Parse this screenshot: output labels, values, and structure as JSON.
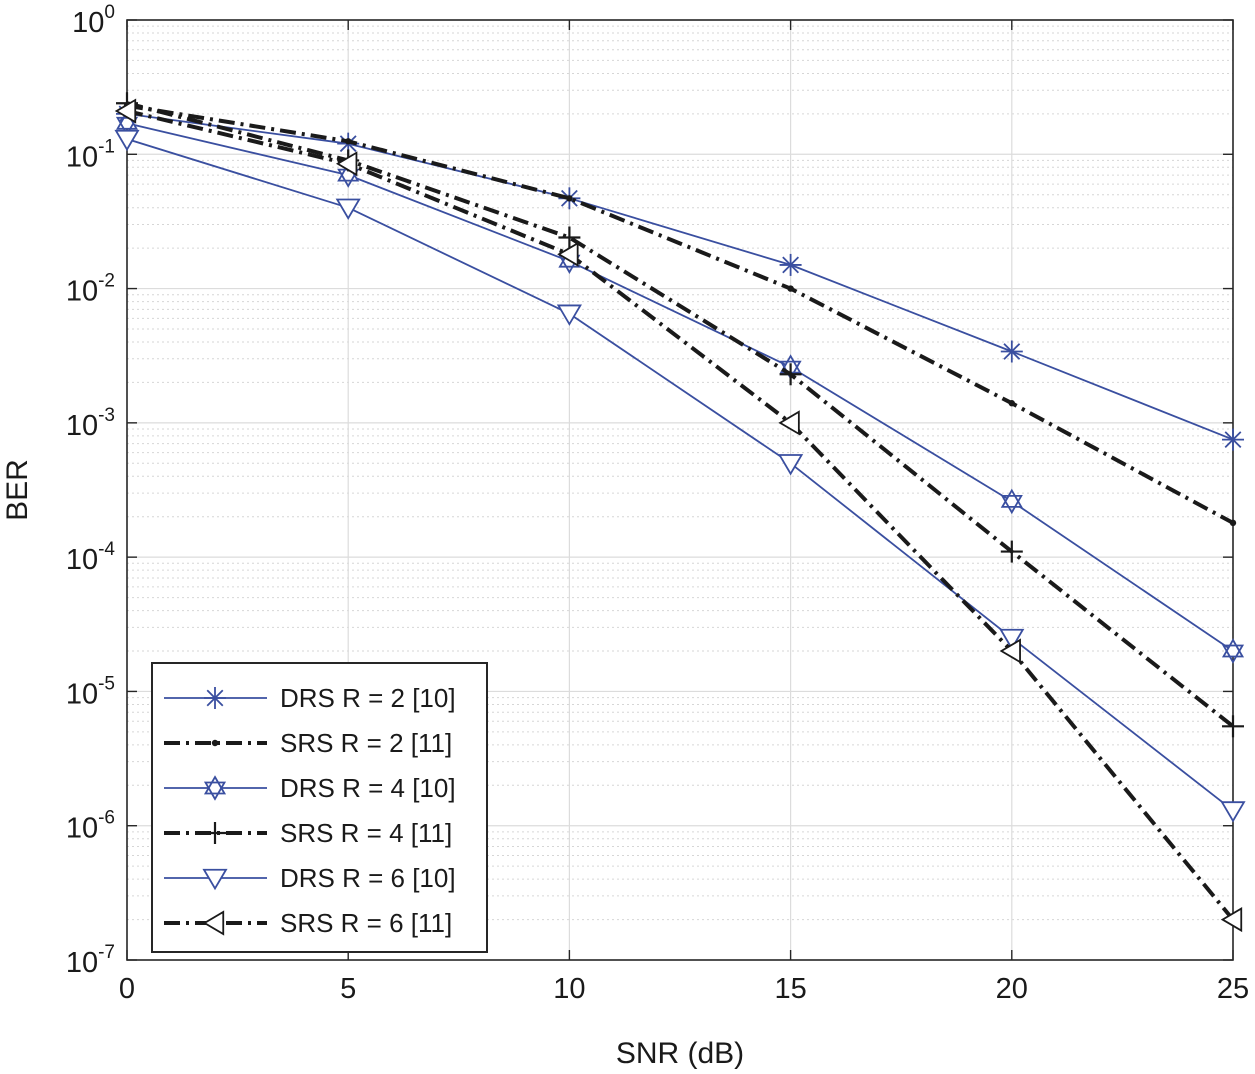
{
  "chart_data": {
    "type": "line",
    "title": "",
    "xlabel": "SNR (dB)",
    "ylabel": "BER",
    "xlim": [
      0,
      25
    ],
    "ylim": [
      1e-07,
      1
    ],
    "yscale": "log",
    "grid": true,
    "legend_position": "bottom-left",
    "xticks": [
      "0",
      "5",
      "10",
      "15",
      "20",
      "25"
    ],
    "yticks": [
      {
        "base": "10",
        "exp": "0"
      },
      {
        "base": "10",
        "exp": "-1"
      },
      {
        "base": "10",
        "exp": "-2"
      },
      {
        "base": "10",
        "exp": "-3"
      },
      {
        "base": "10",
        "exp": "-4"
      },
      {
        "base": "10",
        "exp": "-5"
      },
      {
        "base": "10",
        "exp": "-6"
      },
      {
        "base": "10",
        "exp": "-7"
      }
    ],
    "x": [
      0,
      5,
      10,
      15,
      20,
      25
    ],
    "series": [
      {
        "name": "DRS R = 2 [10]",
        "color": "#3a4fa0",
        "line": "solid",
        "marker": "asterisk",
        "values": [
          0.2,
          0.12,
          0.047,
          0.015,
          0.0034,
          0.00075
        ]
      },
      {
        "name": "SRS R = 2 [11]",
        "color": "#1a1a1a",
        "line": "dashdot",
        "marker": "dot",
        "values": [
          0.23,
          0.125,
          0.047,
          0.01,
          0.0014,
          0.00018
        ]
      },
      {
        "name": "DRS R = 4 [10]",
        "color": "#3a4fa0",
        "line": "solid",
        "marker": "hexagram",
        "values": [
          0.17,
          0.07,
          0.016,
          0.0026,
          0.00026,
          2e-05
        ]
      },
      {
        "name": "SRS R = 4 [11]",
        "color": "#1a1a1a",
        "line": "dashdot",
        "marker": "plus",
        "values": [
          0.24,
          0.09,
          0.024,
          0.0023,
          0.00011,
          5.5e-06
        ]
      },
      {
        "name": "DRS R = 6 [10]",
        "color": "#3a4fa0",
        "line": "solid",
        "marker": "triangle-down",
        "values": [
          0.13,
          0.04,
          0.0065,
          0.0005,
          2.5e-05,
          1.3e-06
        ]
      },
      {
        "name": "SRS R = 6 [11]",
        "color": "#1a1a1a",
        "line": "dashdot",
        "marker": "triangle-left",
        "values": [
          0.21,
          0.085,
          0.018,
          0.001,
          2e-05,
          2e-07
        ]
      }
    ]
  }
}
